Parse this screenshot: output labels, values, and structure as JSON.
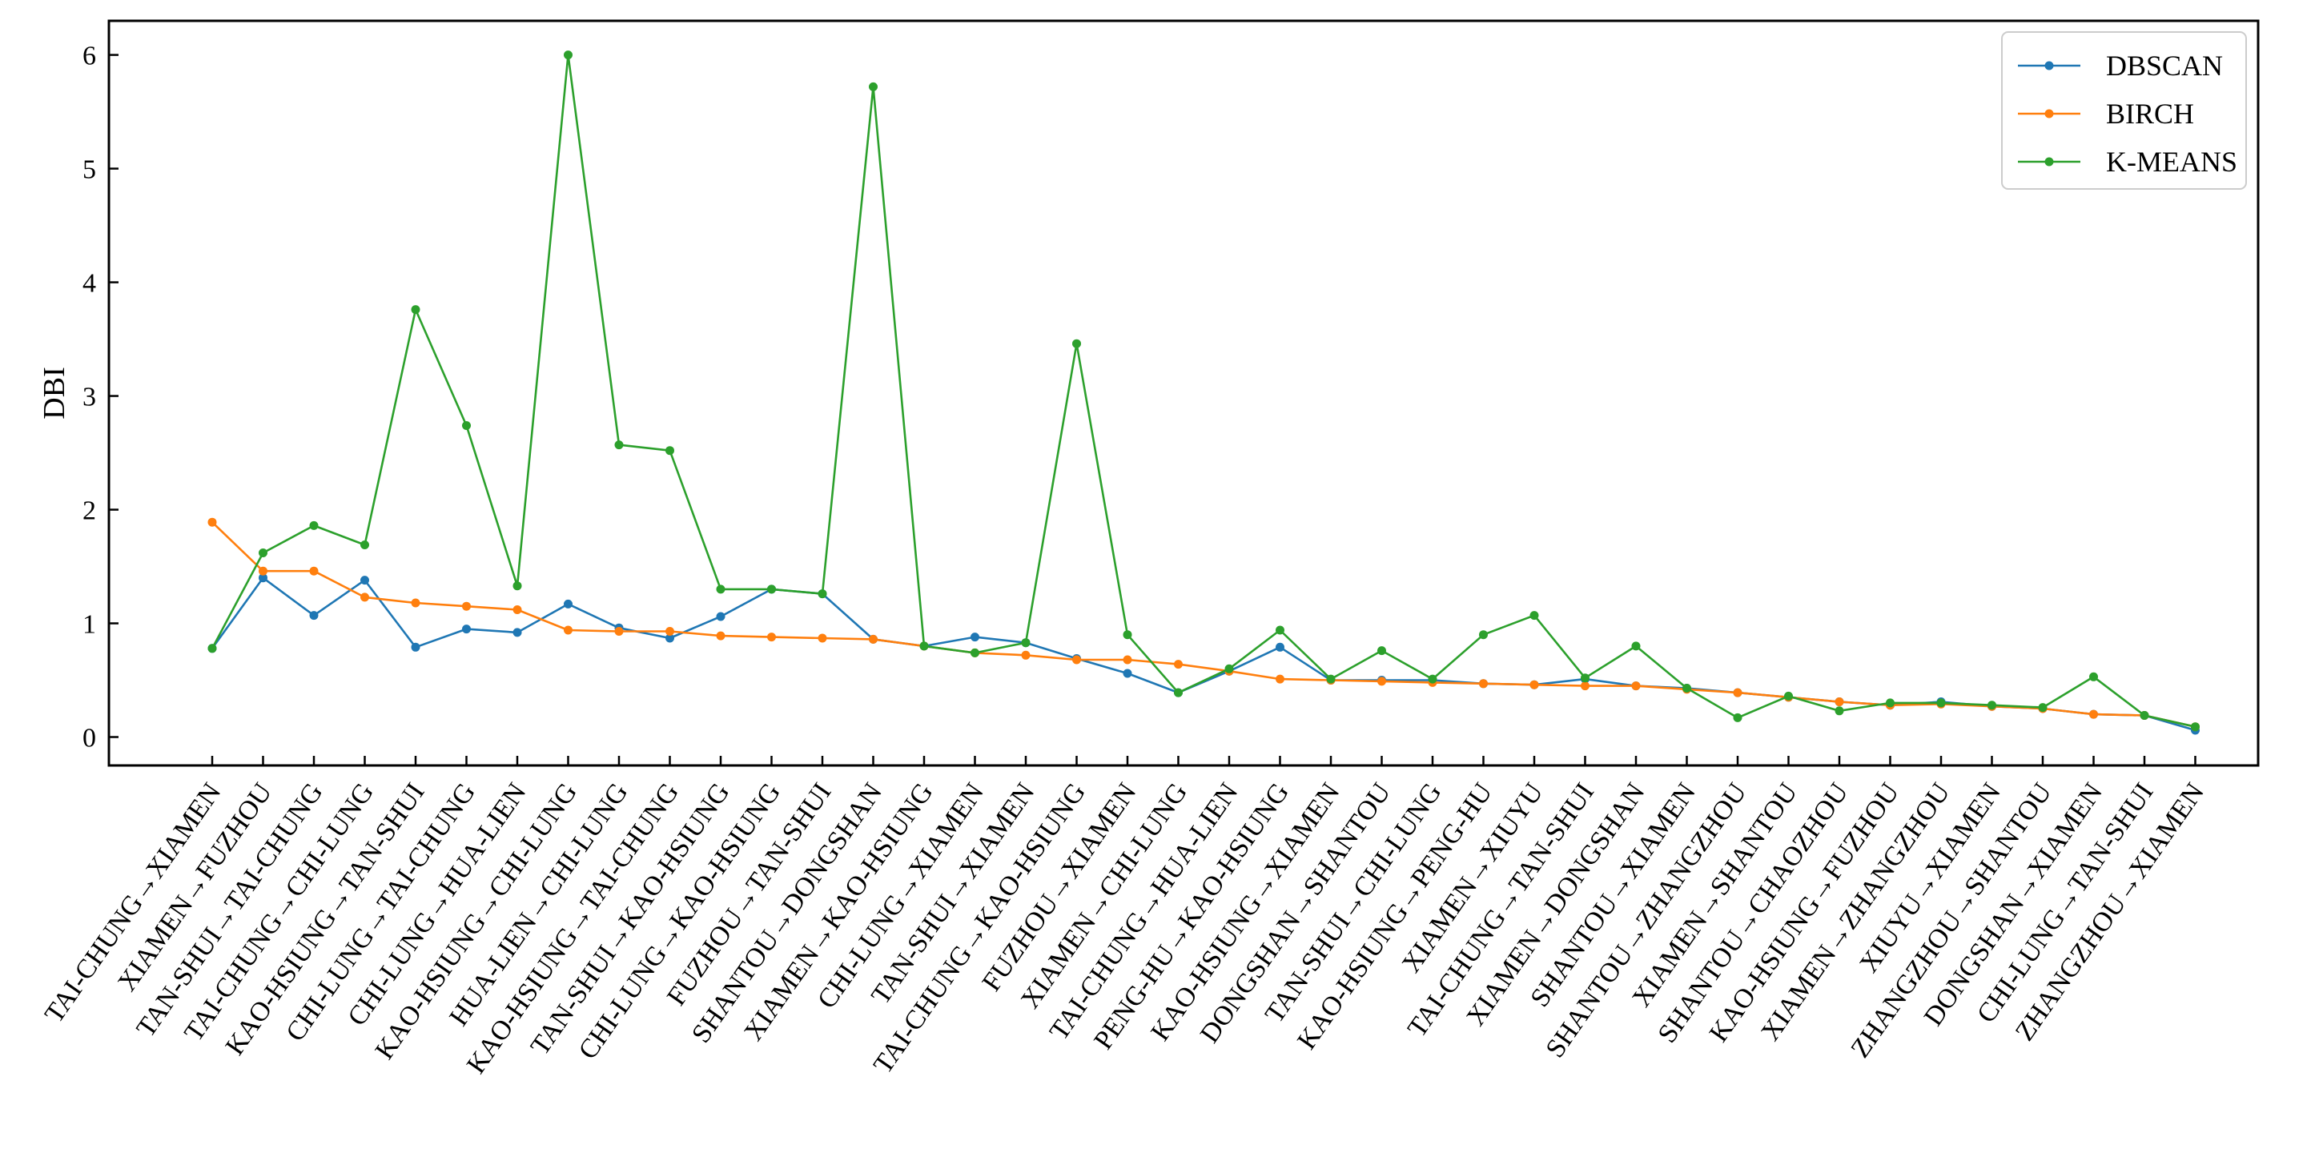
{
  "chart_data": {
    "type": "line",
    "title": "",
    "xlabel": "",
    "ylabel": "DBI",
    "ylim": [
      -0.25,
      6.3
    ],
    "yticks": [
      0,
      1,
      2,
      3,
      4,
      5,
      6
    ],
    "grid": false,
    "legend_position": "top-right",
    "categories": [
      "TAI-CHUNG→XIAMEN",
      "XIAMEN→FUZHOU",
      "TAN-SHUI→TAI-CHUNG",
      "TAI-CHUNG→CHI-LUNG",
      "KAO-HSIUNG→TAN-SHUI",
      "CHI-LUNG→TAI-CHUNG",
      "CHI-LUNG→HUA-LIEN",
      "KAO-HSIUNG→CHI-LUNG",
      "HUA-LIEN→CHI-LUNG",
      "KAO-HSIUNG→TAI-CHUNG",
      "TAN-SHUI→KAO-HSIUNG",
      "CHI-LUNG→KAO-HSIUNG",
      "FUZHOU→TAN-SHUI",
      "SHANTOU→DONGSHAN",
      "XIAMEN→KAO-HSIUNG",
      "CHI-LUNG→XIAMEN",
      "TAN-SHUI→XIAMEN",
      "TAI-CHUNG→KAO-HSIUNG",
      "FUZHOU→XIAMEN",
      "XIAMEN→CHI-LUNG",
      "TAI-CHUNG→HUA-LIEN",
      "PENG-HU→KAO-HSIUNG",
      "KAO-HSIUNG→XIAMEN",
      "DONGSHAN→SHANTOU",
      "TAN-SHUI→CHI-LUNG",
      "KAO-HSIUNG→PENG-HU",
      "XIAMEN→XIUYU",
      "TAI-CHUNG→TAN-SHUI",
      "XIAMEN→DONGSHAN",
      "SHANTOU→XIAMEN",
      "SHANTOU→ZHANGZHOU",
      "XIAMEN→SHANTOU",
      "SHANTOU→CHAOZHOU",
      "KAO-HSIUNG→FUZHOU",
      "XIAMEN→ZHANGZHOU",
      "XIUYU→XIAMEN",
      "ZHANGZHOU→SHANTOU",
      "DONGSHAN→XIAMEN",
      "CHI-LUNG→TAN-SHUI",
      "ZHANGZHOU→XIAMEN"
    ],
    "series": [
      {
        "name": "DBSCAN",
        "color": "#1f77b4",
        "values": [
          0.78,
          1.4,
          1.07,
          1.38,
          0.79,
          0.95,
          0.92,
          1.17,
          0.96,
          0.87,
          1.06,
          1.3,
          1.26,
          0.86,
          0.8,
          0.88,
          0.83,
          0.69,
          0.56,
          0.39,
          0.58,
          0.79,
          0.5,
          0.5,
          0.5,
          0.47,
          0.46,
          0.51,
          0.45,
          0.43,
          0.39,
          0.35,
          0.31,
          0.28,
          0.31,
          0.27,
          0.25,
          0.2,
          0.19,
          0.06
        ]
      },
      {
        "name": "BIRCH",
        "color": "#ff7f0e",
        "values": [
          1.89,
          1.46,
          1.46,
          1.23,
          1.18,
          1.15,
          1.12,
          0.94,
          0.93,
          0.93,
          0.89,
          0.88,
          0.87,
          0.86,
          0.8,
          0.74,
          0.72,
          0.68,
          0.68,
          0.64,
          0.58,
          0.51,
          0.5,
          0.49,
          0.48,
          0.47,
          0.46,
          0.45,
          0.45,
          0.42,
          0.39,
          0.35,
          0.31,
          0.28,
          0.29,
          0.27,
          0.25,
          0.2,
          0.19,
          0.09
        ]
      },
      {
        "name": "K-MEANS",
        "color": "#2ca02c",
        "values": [
          0.78,
          1.62,
          1.86,
          1.69,
          3.76,
          2.74,
          1.33,
          6.0,
          2.57,
          2.52,
          1.3,
          1.3,
          1.26,
          5.72,
          0.8,
          0.74,
          0.83,
          3.46,
          0.9,
          0.39,
          0.6,
          0.94,
          0.51,
          0.76,
          0.51,
          0.9,
          1.07,
          0.52,
          0.8,
          0.43,
          0.17,
          0.36,
          0.23,
          0.3,
          0.3,
          0.28,
          0.26,
          0.53,
          0.19,
          0.09
        ]
      }
    ]
  }
}
